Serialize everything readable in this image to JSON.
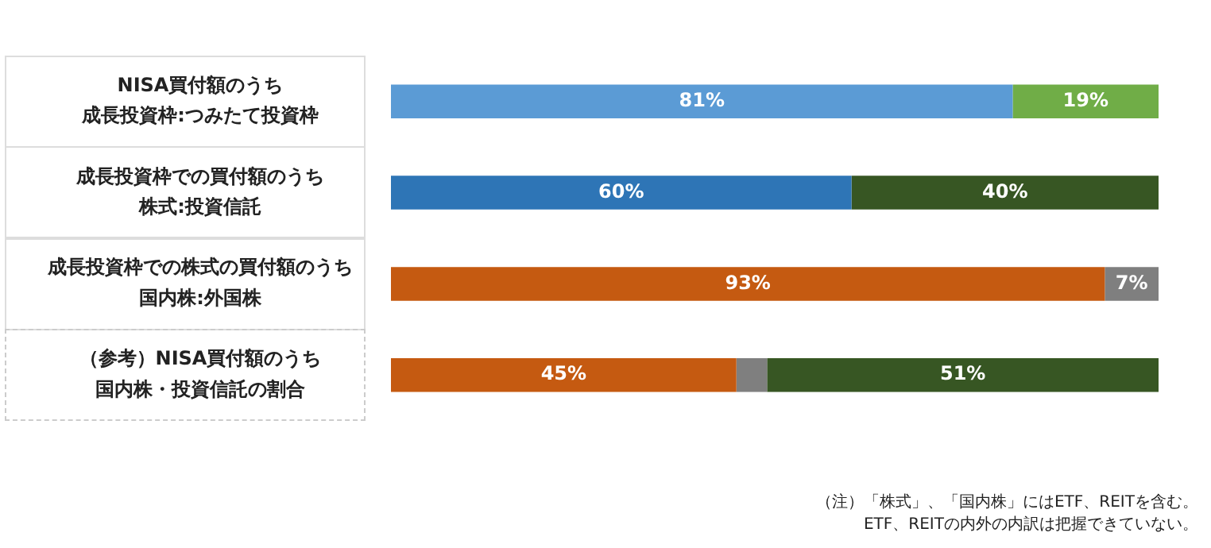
{
  "chart_data": {
    "type": "bar",
    "orientation": "horizontal",
    "stacked": true,
    "categories": [
      "NISA買付額のうち成長投資枠:つみたて投資枠",
      "成長投資枠での買付額のうち株式:投資信託",
      "成長投資枠での株式の買付額のうち国内株:外国株",
      "（参考）NISA買付額のうち国内株・投資信託の割合"
    ],
    "series": [
      {
        "values": [
          81,
          60,
          93,
          45
        ],
        "colors": [
          "#5b9bd5",
          "#2e75b6",
          "#c55a11",
          "#c55a11"
        ],
        "value_labels": [
          "81%",
          "60%",
          "93%",
          "45%"
        ]
      },
      {
        "values": [
          19,
          40,
          7,
          4
        ],
        "colors": [
          "#70ad47",
          "#375623",
          "#7f7f7f",
          "#7f7f7f"
        ],
        "value_labels": [
          "19%",
          "40%",
          "7%",
          null
        ]
      },
      {
        "values": [
          null,
          null,
          null,
          51
        ],
        "colors": [
          "#375623",
          "#375623",
          "#375623",
          "#375623"
        ],
        "value_labels": [
          null,
          null,
          null,
          "51%"
        ]
      }
    ],
    "xlim": [
      0,
      100
    ],
    "tick_labels": "y",
    "annotations": [
      "（注）「株式」、「国内株」にはETF、REITを含む。",
      "ETF、REITの内外の内訳は把握できていない。"
    ]
  }
}
